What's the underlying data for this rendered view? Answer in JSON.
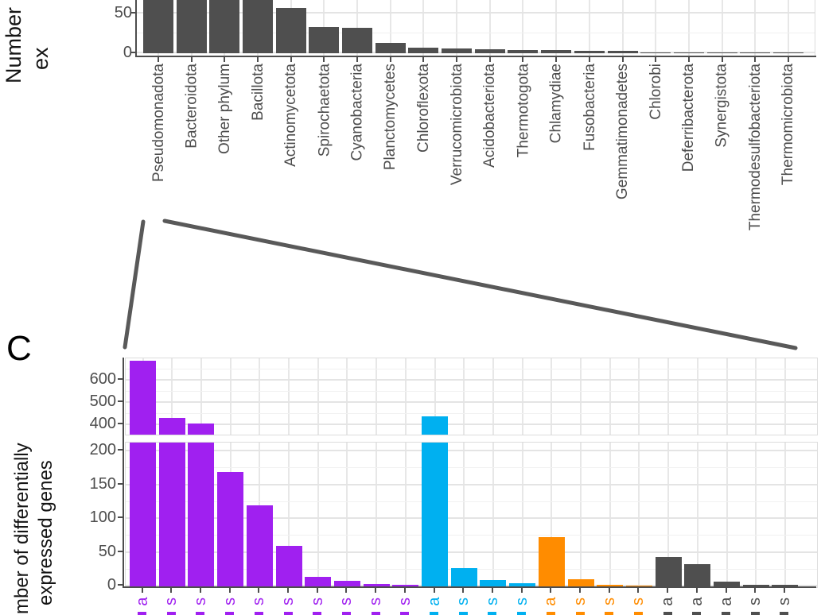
{
  "panel_c_label": "C",
  "palette": {
    "purple": "#a020f0",
    "blue": "#00b0f0",
    "orange": "#ff8c00",
    "gray": "#4f4f4f",
    "axis_text": "#4d4d4d",
    "axis_line": "#4d4d4d",
    "connector_line": "#595959"
  },
  "chart_data": [
    {
      "type": "bar",
      "title": "",
      "ylabel_visible_lines": [
        "Number",
        "ex"
      ],
      "yticks": [
        0,
        50
      ],
      "yticks_minor": [
        25
      ],
      "grid": true,
      "bar_color_key": "gray_dark",
      "bar_color": "#4f4f4f",
      "categories": [
        "Pseudomonadota",
        "Bacteroidota",
        "Other phylum",
        "Bacillota",
        "Actinomycetota",
        "Spirochaetota",
        "Cyanobacteria",
        "Planctomycetes",
        "Chloroflexota",
        "Verrucomicrobiota",
        "Acidobacteriota",
        "Thermotogota",
        "Chlamydiae",
        "Fusobacteria",
        "Gemmatimonadetes",
        "Chlorobi",
        "Deferribacterota",
        "Synergistota",
        "Thermodesulfobacteriota",
        "Thermomicrobiota"
      ],
      "values": [
        70,
        70,
        70,
        70,
        57,
        33,
        32,
        13,
        7,
        6,
        5,
        4,
        4,
        3,
        3,
        1,
        1,
        1,
        1,
        1
      ],
      "clipped_at_top_edge": [
        "Pseudomonadota",
        "Bacteroidota",
        "Other phylum",
        "Bacillota"
      ]
    },
    {
      "type": "bar",
      "panel_label": "C",
      "ylabel_visible_lines": [
        "mber of differentially",
        "expressed genes"
      ],
      "grid": true,
      "y_axis_break": {
        "lower_ticks": [
          0,
          50,
          100,
          150,
          200
        ],
        "lower_ticks_minor": [
          25,
          75,
          125,
          175
        ],
        "upper_ticks": [
          400,
          500,
          600
        ],
        "upper_ticks_minor": [
          450,
          550,
          650
        ]
      },
      "bars": [
        {
          "letter": "a",
          "group": "purple",
          "value": 685
        },
        {
          "letter": "s",
          "group": "purple",
          "value": 430
        },
        {
          "letter": "s",
          "group": "purple",
          "value": 405
        },
        {
          "letter": "s",
          "group": "purple",
          "value": 170
        },
        {
          "letter": "s",
          "group": "purple",
          "value": 120
        },
        {
          "letter": "s",
          "group": "purple",
          "value": 60
        },
        {
          "letter": "s",
          "group": "purple",
          "value": 14
        },
        {
          "letter": "s",
          "group": "purple",
          "value": 8
        },
        {
          "letter": "s",
          "group": "purple",
          "value": 3
        },
        {
          "letter": "s",
          "group": "purple",
          "value": 2
        },
        {
          "letter": "a",
          "group": "blue",
          "value": 435
        },
        {
          "letter": "s",
          "group": "blue",
          "value": 27
        },
        {
          "letter": "s",
          "group": "blue",
          "value": 10
        },
        {
          "letter": "s",
          "group": "blue",
          "value": 5
        },
        {
          "letter": "a",
          "group": "orange",
          "value": 73
        },
        {
          "letter": "s",
          "group": "orange",
          "value": 11
        },
        {
          "letter": "s",
          "group": "orange",
          "value": 2
        },
        {
          "letter": "s",
          "group": "orange",
          "value": 1
        },
        {
          "letter": "a",
          "group": "gray",
          "value": 44
        },
        {
          "letter": "a",
          "group": "gray",
          "value": 33
        },
        {
          "letter": "a",
          "group": "gray",
          "value": 7
        },
        {
          "letter": "s",
          "group": "gray",
          "value": 2
        },
        {
          "letter": "s",
          "group": "gray",
          "value": 2
        }
      ]
    }
  ]
}
